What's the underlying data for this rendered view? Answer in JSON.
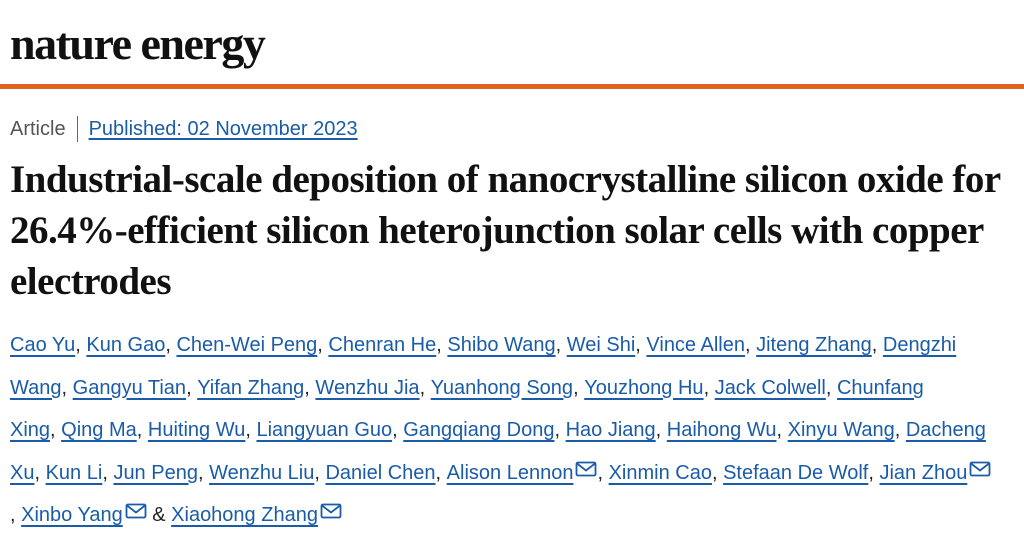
{
  "journal": {
    "name": "nature energy"
  },
  "meta": {
    "article_type": "Article",
    "published": "Published: 02 November 2023"
  },
  "title": "Industrial-scale deposition of nanocrystalline silicon oxide for 26.4%-efficient silicon heterojunction solar cells with copper electrodes",
  "authors": [
    {
      "name": "Cao Yu",
      "sep": ", "
    },
    {
      "name": "Kun Gao",
      "sep": ", "
    },
    {
      "name": "Chen-Wei Peng",
      "sep": ", "
    },
    {
      "name": "Chenran He",
      "sep": ", "
    },
    {
      "name": "Shibo Wang",
      "sep": ", "
    },
    {
      "name": "Wei Shi",
      "sep": ", "
    },
    {
      "name": "Vince Allen",
      "sep": ", "
    },
    {
      "name": "Jiteng Zhang",
      "sep": ", "
    },
    {
      "name": "Dengzhi Wang",
      "sep": ", "
    },
    {
      "name": "Gangyu Tian",
      "sep": ", "
    },
    {
      "name": "Yifan Zhang",
      "sep": ", "
    },
    {
      "name": "Wenzhu Jia",
      "sep": ", "
    },
    {
      "name": "Yuanhong Song",
      "sep": ", "
    },
    {
      "name": "Youzhong Hu",
      "sep": ", "
    },
    {
      "name": "Jack Colwell",
      "sep": ", "
    },
    {
      "name": "Chunfang Xing",
      "sep": ", "
    },
    {
      "name": "Qing Ma",
      "sep": ", "
    },
    {
      "name": "Huiting Wu",
      "sep": ", "
    },
    {
      "name": "Liangyuan Guo",
      "sep": ", "
    },
    {
      "name": "Gangqiang Dong",
      "sep": ", "
    },
    {
      "name": "Hao Jiang",
      "sep": ", "
    },
    {
      "name": "Haihong Wu",
      "sep": ", "
    },
    {
      "name": "Xinyu Wang",
      "sep": ", "
    },
    {
      "name": "Dacheng Xu",
      "sep": ", "
    },
    {
      "name": "Kun Li",
      "sep": ", "
    },
    {
      "name": "Jun Peng",
      "sep": ", "
    },
    {
      "name": "Wenzhu Liu",
      "sep": ", "
    },
    {
      "name": "Daniel Chen",
      "sep": ", "
    },
    {
      "name": "Alison Lennon",
      "sep": ", ",
      "email": true
    },
    {
      "name": "Xinmin Cao",
      "sep": ", "
    },
    {
      "name": "Stefaan De Wolf",
      "sep": ", "
    },
    {
      "name": "Jian Zhou",
      "sep": ", ",
      "email": true
    },
    {
      "name": "Xinbo Yang",
      "sep": " & ",
      "email": true
    },
    {
      "name": "Xiaohong Zhang",
      "sep": "",
      "email": true
    }
  ],
  "icons": {
    "email": "envelope-icon"
  },
  "colors": {
    "accent_rule": "#e0621c",
    "link": "#1a5ca8",
    "text": "#111111"
  }
}
